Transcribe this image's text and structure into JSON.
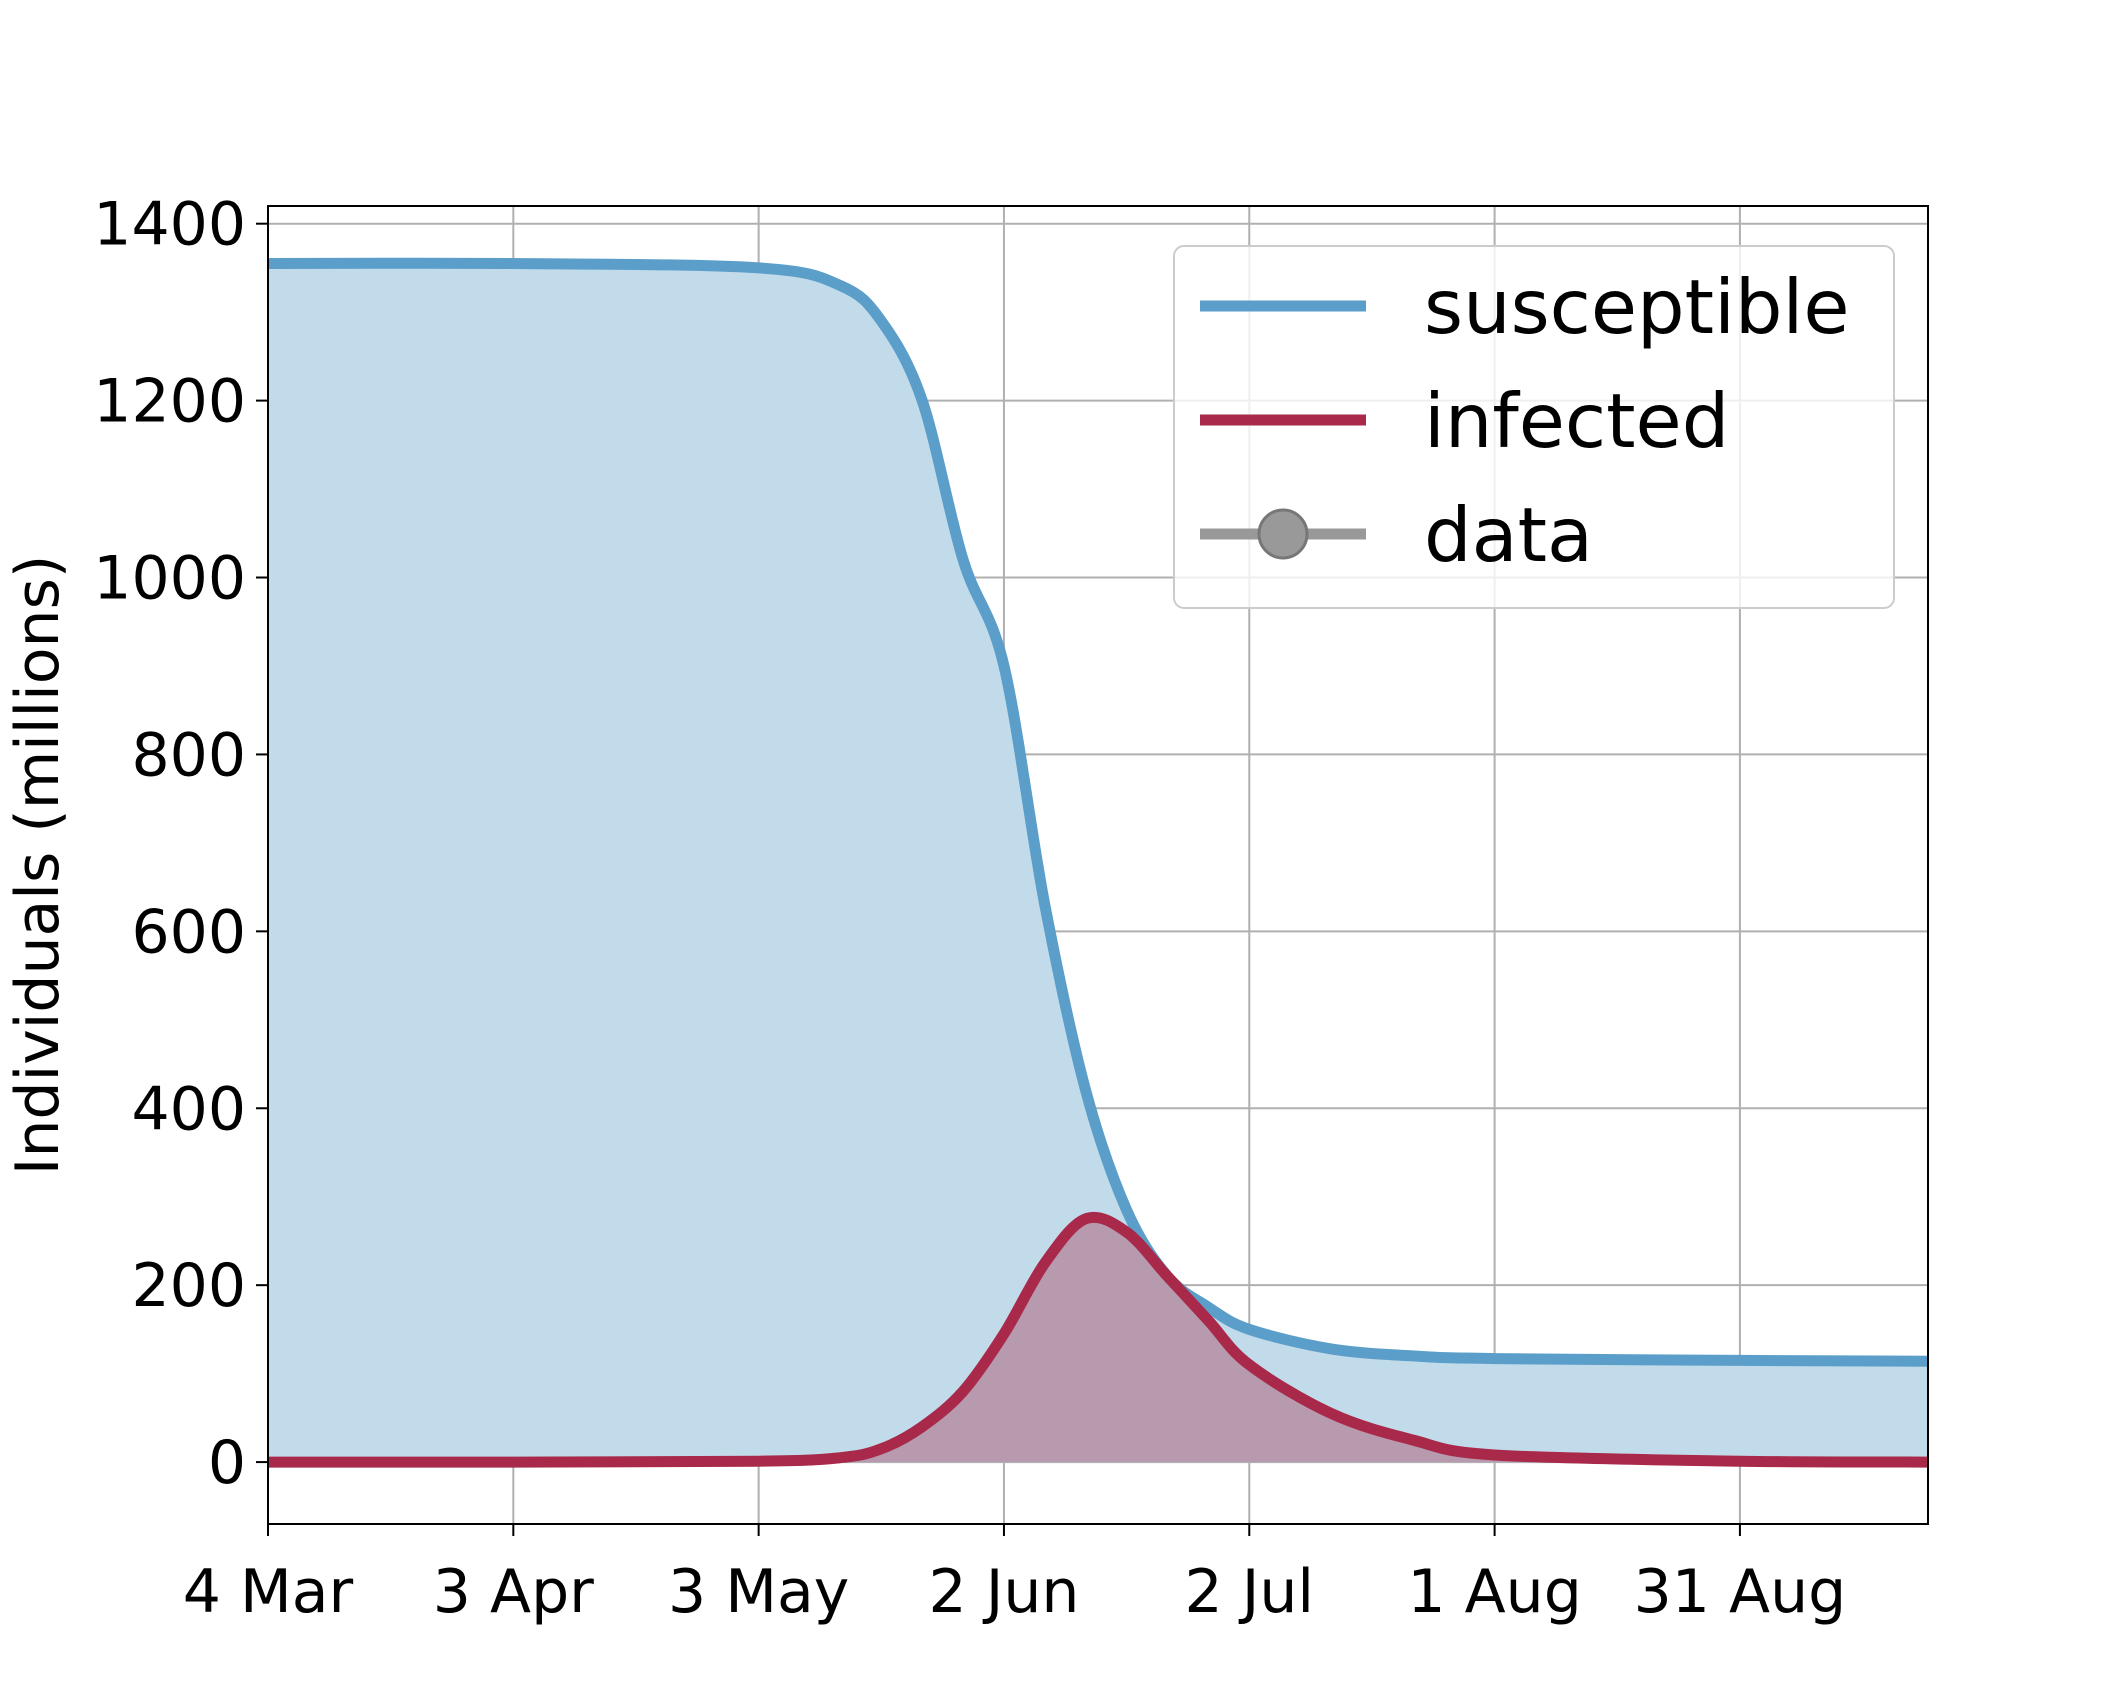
{
  "chart_data": {
    "type": "area",
    "title": "",
    "xlabel": "",
    "ylabel": "Individuals (millions)",
    "x_start": "4 Mar",
    "x_end": "23 Sep",
    "xticks": [
      "4 Mar",
      "3 Apr",
      "3 May",
      "2 Jun",
      "2 Jul",
      "1 Aug",
      "31 Aug"
    ],
    "ylim": [
      -70,
      1420
    ],
    "yticks": [
      "0",
      "200",
      "400",
      "600",
      "800",
      "1000",
      "1200",
      "1400"
    ],
    "grid": true,
    "legend_position": "top-right",
    "series": [
      {
        "name": "susceptible",
        "color": "#5a9ec9",
        "fill": "#c2dbea",
        "x": [
          "4 Mar",
          "3 Apr",
          "3 May",
          "13 May",
          "18 May",
          "23 May",
          "28 May",
          "2 Jun",
          "7 Jun",
          "12 Jun",
          "17 Jun",
          "22 Jun",
          "27 Jun",
          "2 Jul",
          "12 Jul",
          "22 Jul",
          "1 Aug",
          "31 Aug",
          "23 Sep"
        ],
        "values": [
          1355,
          1355,
          1350,
          1330,
          1290,
          1200,
          1020,
          900,
          630,
          420,
          285,
          210,
          175,
          150,
          128,
          120,
          117,
          115,
          114
        ]
      },
      {
        "name": "infected",
        "color": "#a8294a",
        "fill": "#b89aae",
        "x": [
          "4 Mar",
          "3 Apr",
          "3 May",
          "13 May",
          "18 May",
          "23 May",
          "28 May",
          "2 Jun",
          "7 Jun",
          "12 Jun",
          "17 Jun",
          "22 Jun",
          "27 Jun",
          "2 Jul",
          "12 Jul",
          "22 Jul",
          "1 Aug",
          "31 Aug",
          "23 Sep"
        ],
        "values": [
          0,
          0,
          1,
          5,
          15,
          40,
          80,
          145,
          225,
          275,
          260,
          210,
          160,
          110,
          55,
          25,
          8,
          1,
          0
        ]
      },
      {
        "name": "data",
        "color": "#999999",
        "x": [],
        "values": []
      }
    ]
  }
}
